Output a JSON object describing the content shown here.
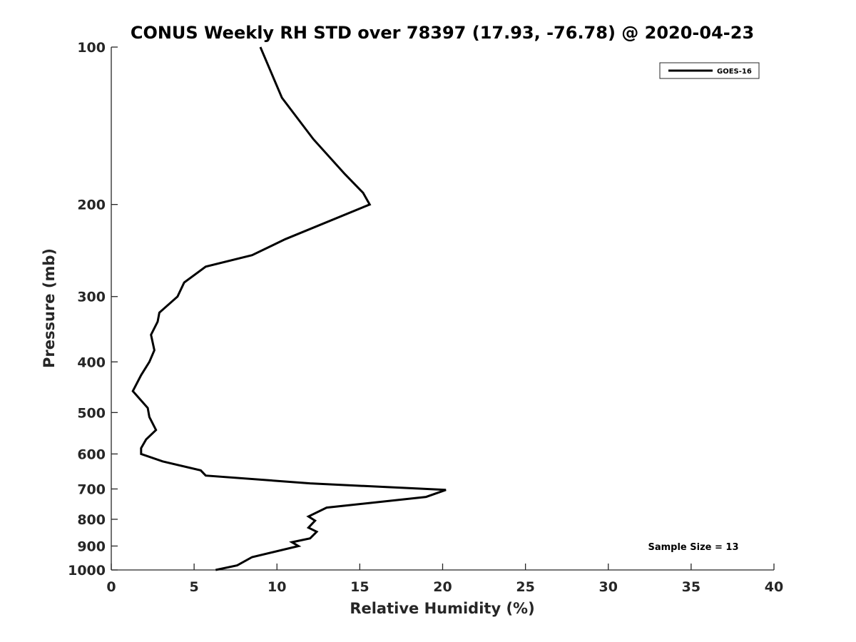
{
  "chart_data": {
    "type": "line",
    "title": "CONUS Weekly RH STD over 78397 (17.93, -76.78) @ 2020-04-23",
    "xlabel": "Relative Humidity (%)",
    "ylabel": "Pressure (mb)",
    "xlim": [
      0,
      40
    ],
    "ylim": [
      100,
      1000
    ],
    "yscale": "log",
    "y_reversed": true,
    "grid": false,
    "x_ticks": [
      0,
      5,
      10,
      15,
      20,
      25,
      30,
      35,
      40
    ],
    "y_ticks": [
      100,
      200,
      300,
      400,
      500,
      600,
      700,
      800,
      900,
      1000
    ],
    "legend": {
      "position": "top-right",
      "entries": [
        "GOES-16"
      ]
    },
    "annotation": "Sample Size = 13",
    "series": [
      {
        "name": "GOES-16",
        "color": "#000000",
        "x": [
          9.0,
          10.3,
          12.2,
          14.1,
          15.2,
          15.6,
          10.5,
          8.5,
          5.7,
          4.4,
          4.0,
          2.9,
          2.8,
          2.4,
          2.6,
          2.3,
          1.8,
          1.3,
          2.2,
          2.3,
          2.7,
          2.1,
          1.8,
          1.8,
          3.1,
          5.4,
          5.7,
          12.0,
          20.2,
          19.0,
          13.0,
          11.9,
          12.3,
          11.9,
          12.4,
          12.0,
          10.9,
          11.3,
          8.5,
          7.6,
          6.3
        ],
        "y": [
          100,
          125,
          150,
          175,
          190,
          200,
          233,
          250,
          263,
          282,
          300,
          322,
          335,
          355,
          380,
          400,
          424,
          455,
          490,
          510,
          540,
          563,
          585,
          600,
          620,
          645,
          660,
          683,
          703,
          725,
          760,
          790,
          805,
          830,
          845,
          870,
          885,
          900,
          945,
          980,
          1000
        ]
      }
    ]
  }
}
